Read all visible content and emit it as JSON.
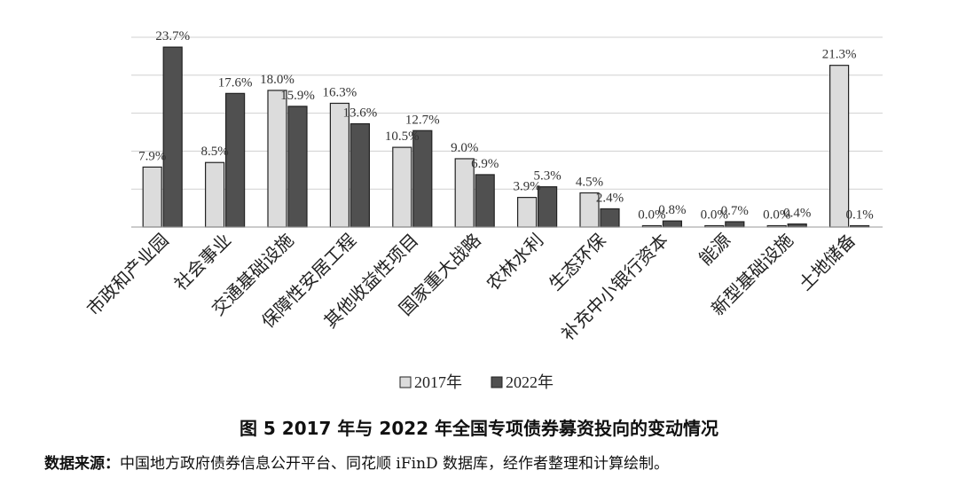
{
  "chart_data": {
    "type": "bar",
    "categories": [
      "市政和产业园",
      "社会事业",
      "交通基础设施",
      "保障性安居工程",
      "其他收益性项目",
      "国家重大战略",
      "农林水利",
      "生态环保",
      "补充中小银行资本",
      "能源",
      "新型基础设施",
      "土地储备"
    ],
    "series": [
      {
        "name": "2017年",
        "values": [
          7.9,
          8.5,
          18.0,
          16.3,
          10.5,
          9.0,
          3.9,
          4.5,
          0.0,
          0.0,
          0.0,
          21.3
        ],
        "labels": [
          "7.9%",
          "8.5%",
          "18.0%",
          "16.3%",
          "10.5%",
          "9.0%",
          "3.9%",
          "4.5%",
          "0.0%",
          "0.0%",
          "0.0%",
          "21.3%"
        ]
      },
      {
        "name": "2022年",
        "values": [
          23.7,
          17.6,
          15.9,
          13.6,
          12.7,
          6.9,
          5.3,
          2.4,
          0.8,
          0.7,
          0.4,
          0.1
        ],
        "labels": [
          "23.7%",
          "17.6%",
          "15.9%",
          "13.6%",
          "12.7%",
          "6.9%",
          "5.3%",
          "2.4%",
          "0.8%",
          "0.7%",
          "0.4%",
          "0.1%"
        ]
      }
    ],
    "ylim": [
      0,
      25
    ],
    "grid": true,
    "legend_position": "bottom",
    "colors": {
      "2017年": "#dcdcdc",
      "2022年": "#505050"
    }
  },
  "title": "图 5   2017 年与 2022 年全国专项债券募资投向的变动情况",
  "source_label": "数据来源：",
  "source_text": "中国地方政府债券信息公开平台、同花顺 iFinD 数据库，经作者整理和计算绘制。"
}
